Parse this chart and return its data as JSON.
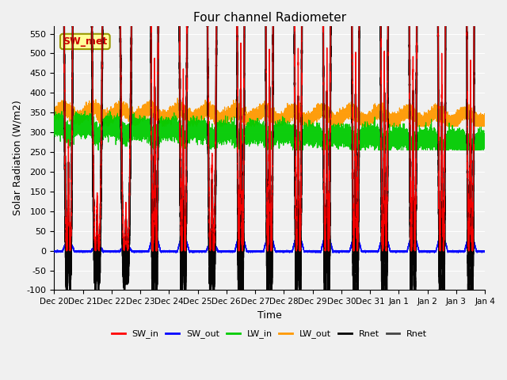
{
  "title": "Four channel Radiometer",
  "xlabel": "Time",
  "ylabel": "Solar Radiation (W/m2)",
  "ylim": [
    -100,
    570
  ],
  "yticks": [
    -100,
    -50,
    0,
    50,
    100,
    150,
    200,
    250,
    300,
    350,
    400,
    450,
    500,
    550
  ],
  "sw_in_color": "#ff0000",
  "sw_out_color": "#0000ff",
  "lw_in_color": "#00cc00",
  "lw_out_color": "#ff9900",
  "rnet_color": "#000000",
  "rnet2_color": "#444444",
  "background_color": "#f0f0f0",
  "grid_color": "#ffffff",
  "annotation_text": "SW_met",
  "x_tick_labels": [
    "Dec 20",
    "Dec 21",
    "Dec 22",
    "Dec 23",
    "Dec 24",
    "Dec 25",
    "Dec 26",
    "Dec 27",
    "Dec 28",
    "Dec 29",
    "Dec 30",
    "Dec 31",
    "Jan 1",
    "Jan 2",
    "Jan 3",
    "Jan 4"
  ]
}
